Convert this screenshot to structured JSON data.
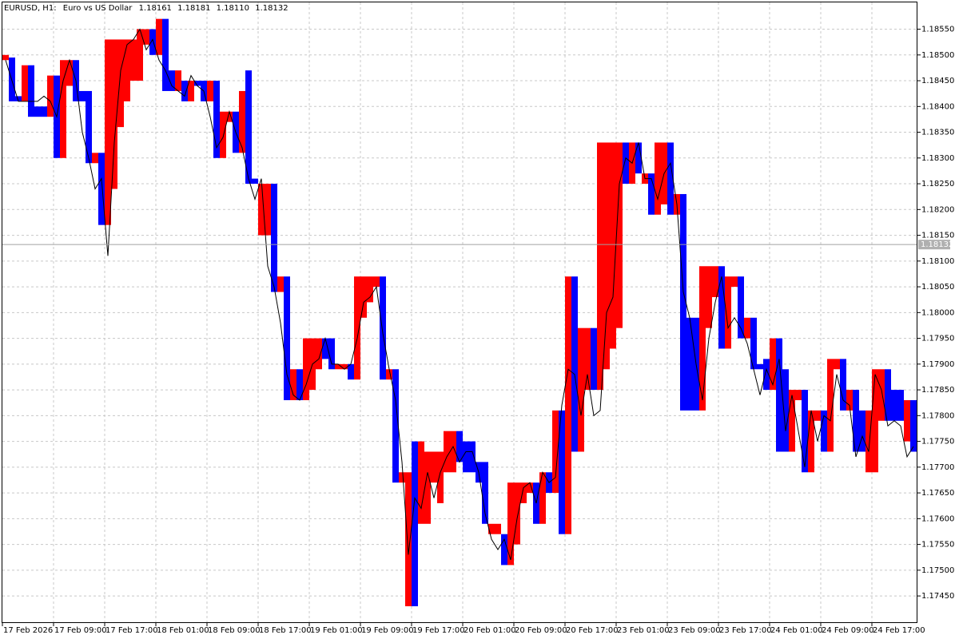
{
  "chart_data": {
    "type": "block",
    "header": {
      "symbol": "EURUSD, H1:",
      "description": "Euro vs US Dollar",
      "open": "1.18161",
      "high": "1.18181",
      "low": "1.18110",
      "close": "1.18132"
    },
    "current_price": 1.18132,
    "up_color": "#ff0000",
    "down_color": "#0000ff",
    "line_color": "#000000",
    "grid": true,
    "ylim": [
      1.17399,
      1.18602
    ],
    "yticks": [
      {
        "value": 1.1745,
        "label": "1.17450"
      },
      {
        "value": 1.175,
        "label": "1.17500"
      },
      {
        "value": 1.1755,
        "label": "1.17550"
      },
      {
        "value": 1.176,
        "label": "1.17600"
      },
      {
        "value": 1.1765,
        "label": "1.17650"
      },
      {
        "value": 1.177,
        "label": "1.17700"
      },
      {
        "value": 1.1775,
        "label": "1.17750"
      },
      {
        "value": 1.178,
        "label": "1.17800"
      },
      {
        "value": 1.1785,
        "label": "1.17850"
      },
      {
        "value": 1.179,
        "label": "1.17900"
      },
      {
        "value": 1.1795,
        "label": "1.17950"
      },
      {
        "value": 1.18,
        "label": "1.18000"
      },
      {
        "value": 1.1805,
        "label": "1.18050"
      },
      {
        "value": 1.181,
        "label": "1.18100"
      },
      {
        "value": 1.1815,
        "label": "1.18150"
      },
      {
        "value": 1.182,
        "label": "1.18200"
      },
      {
        "value": 1.1825,
        "label": "1.18250"
      },
      {
        "value": 1.183,
        "label": "1.18300"
      },
      {
        "value": 1.1835,
        "label": "1.18350"
      },
      {
        "value": 1.184,
        "label": "1.18400"
      },
      {
        "value": 1.1845,
        "label": "1.18450"
      },
      {
        "value": 1.185,
        "label": "1.18500"
      },
      {
        "value": 1.1855,
        "label": "1.18550"
      }
    ],
    "categories": [
      "17 Feb 2026",
      null,
      null,
      null,
      null,
      null,
      null,
      null,
      "17 Feb 09:00",
      null,
      null,
      null,
      null,
      null,
      null,
      null,
      "17 Feb 17:00",
      null,
      null,
      null,
      null,
      null,
      null,
      null,
      "18 Feb 01:00",
      null,
      null,
      null,
      null,
      null,
      null,
      null,
      "18 Feb 09:00",
      null,
      null,
      null,
      null,
      null,
      null,
      null,
      "18 Feb 17:00",
      null,
      null,
      null,
      null,
      null,
      null,
      null,
      "19 Feb 01:00",
      null,
      null,
      null,
      null,
      null,
      null,
      null,
      "19 Feb 09:00",
      null,
      null,
      null,
      null,
      null,
      null,
      null,
      "19 Feb 17:00",
      null,
      null,
      null,
      null,
      null,
      null,
      null,
      "20 Feb 01:00",
      null,
      null,
      null,
      null,
      null,
      null,
      null,
      "20 Feb 09:00",
      null,
      null,
      null,
      null,
      null,
      null,
      null,
      "20 Feb 17:00",
      null,
      null,
      null,
      null,
      null,
      null,
      null,
      "23 Feb 01:00",
      null,
      null,
      null,
      null,
      null,
      null,
      null,
      "23 Feb 09:00",
      null,
      null,
      null,
      null,
      null,
      null,
      null,
      "23 Feb 17:00",
      null,
      null,
      null,
      null,
      null,
      null,
      null,
      "24 Feb 01:00",
      null,
      null,
      null,
      null,
      null,
      null,
      null,
      "24 Feb 09:00",
      null,
      null,
      null,
      null,
      null,
      null,
      null,
      "24 Feb 17:00",
      null,
      null,
      null,
      null,
      null,
      null
    ],
    "bars": {
      "open": [
        1.1849,
        1.18495,
        1.1842,
        1.1841,
        1.1848,
        1.184,
        1.184,
        1.1838,
        1.1846,
        1.183,
        1.1844,
        1.1849,
        1.1843,
        1.1843,
        1.1829,
        1.1831,
        1.1817,
        1.1824,
        1.1836,
        1.1841,
        1.1845,
        1.1845,
        1.1852,
        1.1855,
        1.185,
        1.1857,
        1.1847,
        1.1843,
        1.1845,
        1.1841,
        1.1845,
        1.1845,
        1.1841,
        1.1845,
        1.183,
        1.1837,
        1.1839,
        1.1831,
        1.1847,
        1.1826,
        1.1815,
        1.1815,
        1.1825,
        1.1804,
        1.1807,
        1.1783,
        1.1789,
        1.1783,
        1.1785,
        1.1789,
        1.1795,
        1.1795,
        1.1789,
        1.1789,
        1.179,
        1.1787,
        1.1799,
        1.1802,
        1.1805,
        1.1807,
        1.1787,
        1.1789,
        1.1767,
        1.1743,
        1.1775,
        1.1759,
        1.1759,
        1.1767,
        1.1763,
        1.1769,
        1.1769,
        1.1777,
        1.1775,
        1.1775,
        1.1771,
        1.1771,
        1.1757,
        1.1757,
        1.1757,
        1.1751,
        1.1755,
        1.1763,
        1.1765,
        1.1767,
        1.1759,
        1.1769,
        1.1765,
        1.1781,
        1.1757,
        1.1807,
        1.1773,
        1.1785,
        1.1797,
        1.1785,
        1.1789,
        1.1793,
        1.1797,
        1.1833,
        1.1825,
        1.1833,
        1.1825,
        1.1827,
        1.1819,
        1.1821,
        1.1833,
        1.1819,
        1.1823,
        1.1799,
        1.1799,
        1.1781,
        1.1797,
        1.1803,
        1.1809,
        1.1793,
        1.1805,
        1.1807,
        1.1795,
        1.1799,
        1.179,
        1.1791,
        1.1785,
        1.1795,
        1.1789,
        1.1773,
        1.1783,
        1.1785,
        1.1769,
        1.1779,
        1.1781,
        1.1773,
        1.1789,
        1.1791,
        1.1781,
        1.1785,
        1.1781,
        1.1769,
        1.1769,
        1.1779,
        1.1789,
        1.1785,
        1.1785,
        1.1775,
        1.1783
      ],
      "close": [
        1.185,
        1.1841,
        1.1841,
        1.1848,
        1.1838,
        1.1838,
        1.1838,
        1.1846,
        1.183,
        1.1849,
        1.1849,
        1.1841,
        1.1841,
        1.1829,
        1.1831,
        1.1817,
        1.1853,
        1.1853,
        1.1853,
        1.1853,
        1.1853,
        1.1855,
        1.1855,
        1.185,
        1.1857,
        1.1843,
        1.1843,
        1.1847,
        1.1841,
        1.1845,
        1.1844,
        1.1841,
        1.1845,
        1.183,
        1.1839,
        1.1839,
        1.1831,
        1.1843,
        1.1825,
        1.1825,
        1.1825,
        1.1825,
        1.1804,
        1.1807,
        1.1783,
        1.1789,
        1.1783,
        1.1795,
        1.1795,
        1.1795,
        1.1791,
        1.1789,
        1.179,
        1.179,
        1.1787,
        1.1807,
        1.1807,
        1.1807,
        1.1807,
        1.1787,
        1.1789,
        1.1767,
        1.1769,
        1.1769,
        1.1743,
        1.1775,
        1.1773,
        1.1773,
        1.1773,
        1.1777,
        1.1777,
        1.1771,
        1.1769,
        1.1769,
        1.1767,
        1.1759,
        1.1759,
        1.1759,
        1.1751,
        1.1767,
        1.1767,
        1.1767,
        1.1767,
        1.1759,
        1.1769,
        1.1765,
        1.1781,
        1.1757,
        1.1807,
        1.1773,
        1.1797,
        1.1797,
        1.1785,
        1.1833,
        1.1833,
        1.1833,
        1.1833,
        1.1825,
        1.1833,
        1.1827,
        1.1827,
        1.1819,
        1.1833,
        1.1833,
        1.1819,
        1.1823,
        1.1781,
        1.1781,
        1.1781,
        1.1809,
        1.1809,
        1.1809,
        1.1793,
        1.1807,
        1.1807,
        1.1795,
        1.1799,
        1.1789,
        1.1789,
        1.1785,
        1.1795,
        1.1773,
        1.1773,
        1.1785,
        1.1785,
        1.1769,
        1.1781,
        1.1781,
        1.1773,
        1.1791,
        1.1791,
        1.1781,
        1.1785,
        1.1773,
        1.1773,
        1.1781,
        1.1789,
        1.1789,
        1.1779,
        1.1779,
        1.1779,
        1.1783,
        1.1773
      ]
    },
    "line": {
      "values": [
        1.1849,
        1.1845,
        1.1841,
        1.1841,
        1.1841,
        1.1841,
        1.1842,
        1.1841,
        1.1838,
        1.1845,
        1.1849,
        1.1845,
        1.1835,
        1.183,
        1.1824,
        1.1826,
        1.1811,
        1.1833,
        1.1847,
        1.1852,
        1.1853,
        1.1855,
        1.1851,
        1.1853,
        1.1849,
        1.1847,
        1.1844,
        1.1843,
        1.1842,
        1.1846,
        1.1844,
        1.1843,
        1.1838,
        1.1832,
        1.1834,
        1.1839,
        1.1835,
        1.1832,
        1.1826,
        1.1822,
        1.1826,
        1.1809,
        1.1805,
        1.1798,
        1.1788,
        1.1784,
        1.1783,
        1.1786,
        1.179,
        1.1791,
        1.1795,
        1.179,
        1.179,
        1.1789,
        1.179,
        1.1795,
        1.1802,
        1.1803,
        1.1805,
        1.1796,
        1.1789,
        1.1783,
        1.1771,
        1.1753,
        1.1764,
        1.1762,
        1.1769,
        1.1764,
        1.1769,
        1.1772,
        1.1774,
        1.1771,
        1.1773,
        1.1773,
        1.1769,
        1.1761,
        1.1756,
        1.1754,
        1.1756,
        1.1752,
        1.176,
        1.1766,
        1.1767,
        1.1763,
        1.1769,
        1.1767,
        1.1768,
        1.1782,
        1.1789,
        1.1788,
        1.178,
        1.1788,
        1.178,
        1.1781,
        1.18,
        1.1803,
        1.1825,
        1.183,
        1.1829,
        1.1833,
        1.1826,
        1.1826,
        1.1822,
        1.1827,
        1.1829,
        1.1821,
        1.1804,
        1.1799,
        1.179,
        1.1783,
        1.1795,
        1.1802,
        1.1807,
        1.1797,
        1.1799,
        1.1797,
        1.1794,
        1.1789,
        1.1784,
        1.1789,
        1.1786,
        1.1791,
        1.1777,
        1.1784,
        1.1777,
        1.177,
        1.1781,
        1.1775,
        1.178,
        1.1779,
        1.1788,
        1.1783,
        1.1782,
        1.1772,
        1.1776,
        1.1773,
        1.1788,
        1.1785,
        1.1778,
        1.1779,
        1.1778,
        1.1772,
        1.1774
      ]
    }
  }
}
